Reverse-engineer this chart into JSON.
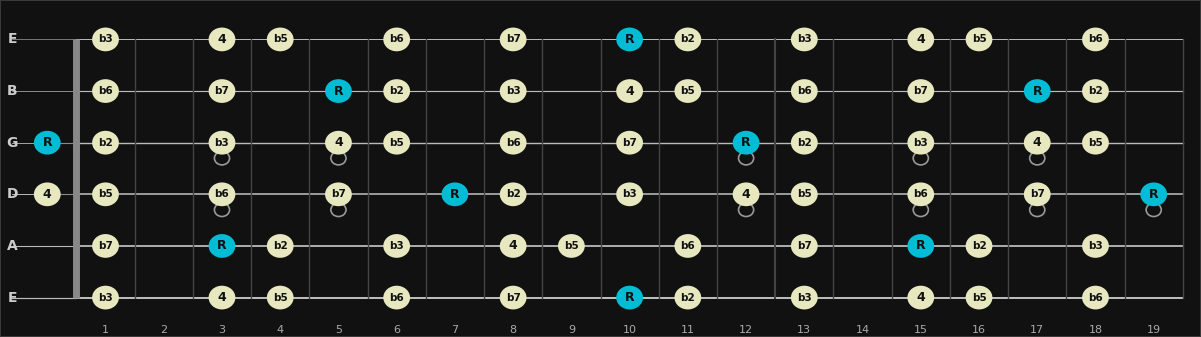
{
  "bg_color": "#3a3a3a",
  "fretboard_color": "#111111",
  "string_color": "#bbbbbb",
  "fret_color": "#444444",
  "note_color_normal": "#e8e8c0",
  "note_color_root": "#00bcd4",
  "note_text_color": "#111111",
  "string_names": [
    "E",
    "B",
    "G",
    "D",
    "A",
    "E"
  ],
  "fret_numbers": [
    1,
    2,
    3,
    4,
    5,
    6,
    7,
    8,
    9,
    10,
    11,
    12,
    13,
    14,
    15,
    16,
    17,
    18,
    19
  ],
  "notes": [
    {
      "string": 5,
      "fret": 1,
      "label": "b3",
      "root": false
    },
    {
      "string": 5,
      "fret": 3,
      "label": "4",
      "root": false
    },
    {
      "string": 5,
      "fret": 4,
      "label": "b5",
      "root": false
    },
    {
      "string": 5,
      "fret": 6,
      "label": "b6",
      "root": false
    },
    {
      "string": 5,
      "fret": 8,
      "label": "b7",
      "root": false
    },
    {
      "string": 5,
      "fret": 10,
      "label": "R",
      "root": true
    },
    {
      "string": 5,
      "fret": 11,
      "label": "b2",
      "root": false
    },
    {
      "string": 5,
      "fret": 13,
      "label": "b3",
      "root": false
    },
    {
      "string": 5,
      "fret": 15,
      "label": "4",
      "root": false
    },
    {
      "string": 5,
      "fret": 16,
      "label": "b5",
      "root": false
    },
    {
      "string": 5,
      "fret": 18,
      "label": "b6",
      "root": false
    },
    {
      "string": 4,
      "fret": 1,
      "label": "b7",
      "root": false
    },
    {
      "string": 4,
      "fret": 3,
      "label": "R",
      "root": true
    },
    {
      "string": 4,
      "fret": 4,
      "label": "b2",
      "root": false
    },
    {
      "string": 4,
      "fret": 6,
      "label": "b3",
      "root": false
    },
    {
      "string": 4,
      "fret": 8,
      "label": "4",
      "root": false
    },
    {
      "string": 4,
      "fret": 9,
      "label": "b5",
      "root": false
    },
    {
      "string": 4,
      "fret": 11,
      "label": "b6",
      "root": false
    },
    {
      "string": 4,
      "fret": 13,
      "label": "b7",
      "root": false
    },
    {
      "string": 4,
      "fret": 15,
      "label": "R",
      "root": true
    },
    {
      "string": 4,
      "fret": 16,
      "label": "b2",
      "root": false
    },
    {
      "string": 4,
      "fret": 18,
      "label": "b3",
      "root": false
    },
    {
      "string": 3,
      "fret": 0,
      "label": "4",
      "root": false
    },
    {
      "string": 3,
      "fret": 1,
      "label": "b5",
      "root": false
    },
    {
      "string": 3,
      "fret": 3,
      "label": "b6",
      "root": false
    },
    {
      "string": 3,
      "fret": 5,
      "label": "b7",
      "root": false
    },
    {
      "string": 3,
      "fret": 7,
      "label": "R",
      "root": true
    },
    {
      "string": 3,
      "fret": 8,
      "label": "b2",
      "root": false
    },
    {
      "string": 3,
      "fret": 10,
      "label": "b3",
      "root": false
    },
    {
      "string": 3,
      "fret": 12,
      "label": "4",
      "root": false
    },
    {
      "string": 3,
      "fret": 13,
      "label": "b5",
      "root": false
    },
    {
      "string": 3,
      "fret": 15,
      "label": "b6",
      "root": false
    },
    {
      "string": 3,
      "fret": 17,
      "label": "b7",
      "root": false
    },
    {
      "string": 3,
      "fret": 19,
      "label": "R",
      "root": true
    },
    {
      "string": 2,
      "fret": 0,
      "label": "R",
      "root": true
    },
    {
      "string": 2,
      "fret": 1,
      "label": "b2",
      "root": false
    },
    {
      "string": 2,
      "fret": 3,
      "label": "b3",
      "root": false
    },
    {
      "string": 2,
      "fret": 5,
      "label": "4",
      "root": false
    },
    {
      "string": 2,
      "fret": 6,
      "label": "b5",
      "root": false
    },
    {
      "string": 2,
      "fret": 8,
      "label": "b6",
      "root": false
    },
    {
      "string": 2,
      "fret": 10,
      "label": "b7",
      "root": false
    },
    {
      "string": 2,
      "fret": 12,
      "label": "R",
      "root": true
    },
    {
      "string": 2,
      "fret": 13,
      "label": "b2",
      "root": false
    },
    {
      "string": 2,
      "fret": 15,
      "label": "b3",
      "root": false
    },
    {
      "string": 2,
      "fret": 17,
      "label": "4",
      "root": false
    },
    {
      "string": 2,
      "fret": 18,
      "label": "b5",
      "root": false
    },
    {
      "string": 1,
      "fret": 1,
      "label": "b6",
      "root": false
    },
    {
      "string": 1,
      "fret": 3,
      "label": "b7",
      "root": false
    },
    {
      "string": 1,
      "fret": 5,
      "label": "R",
      "root": true
    },
    {
      "string": 1,
      "fret": 6,
      "label": "b2",
      "root": false
    },
    {
      "string": 1,
      "fret": 8,
      "label": "b3",
      "root": false
    },
    {
      "string": 1,
      "fret": 10,
      "label": "4",
      "root": false
    },
    {
      "string": 1,
      "fret": 11,
      "label": "b5",
      "root": false
    },
    {
      "string": 1,
      "fret": 13,
      "label": "b6",
      "root": false
    },
    {
      "string": 1,
      "fret": 15,
      "label": "b7",
      "root": false
    },
    {
      "string": 1,
      "fret": 17,
      "label": "R",
      "root": true
    },
    {
      "string": 1,
      "fret": 18,
      "label": "b2",
      "root": false
    },
    {
      "string": 0,
      "fret": 1,
      "label": "b3",
      "root": false
    },
    {
      "string": 0,
      "fret": 3,
      "label": "4",
      "root": false
    },
    {
      "string": 0,
      "fret": 4,
      "label": "b5",
      "root": false
    },
    {
      "string": 0,
      "fret": 6,
      "label": "b6",
      "root": false
    },
    {
      "string": 0,
      "fret": 8,
      "label": "b7",
      "root": false
    },
    {
      "string": 0,
      "fret": 10,
      "label": "R",
      "root": true
    },
    {
      "string": 0,
      "fret": 11,
      "label": "b2",
      "root": false
    },
    {
      "string": 0,
      "fret": 13,
      "label": "b3",
      "root": false
    },
    {
      "string": 0,
      "fret": 15,
      "label": "4",
      "root": false
    },
    {
      "string": 0,
      "fret": 16,
      "label": "b5",
      "root": false
    },
    {
      "string": 0,
      "fret": 18,
      "label": "b6",
      "root": false
    }
  ],
  "open_notes": [
    {
      "string": 3,
      "fret": 0
    },
    {
      "string": 2,
      "fret": 0
    }
  ],
  "tie_below": [
    {
      "string": 3,
      "fret": 3
    },
    {
      "string": 3,
      "fret": 5
    },
    {
      "string": 3,
      "fret": 12
    },
    {
      "string": 3,
      "fret": 15
    },
    {
      "string": 3,
      "fret": 17
    },
    {
      "string": 3,
      "fret": 19
    },
    {
      "string": 2,
      "fret": 3
    },
    {
      "string": 2,
      "fret": 5
    },
    {
      "string": 2,
      "fret": 12
    },
    {
      "string": 2,
      "fret": 15
    },
    {
      "string": 2,
      "fret": 17
    }
  ]
}
